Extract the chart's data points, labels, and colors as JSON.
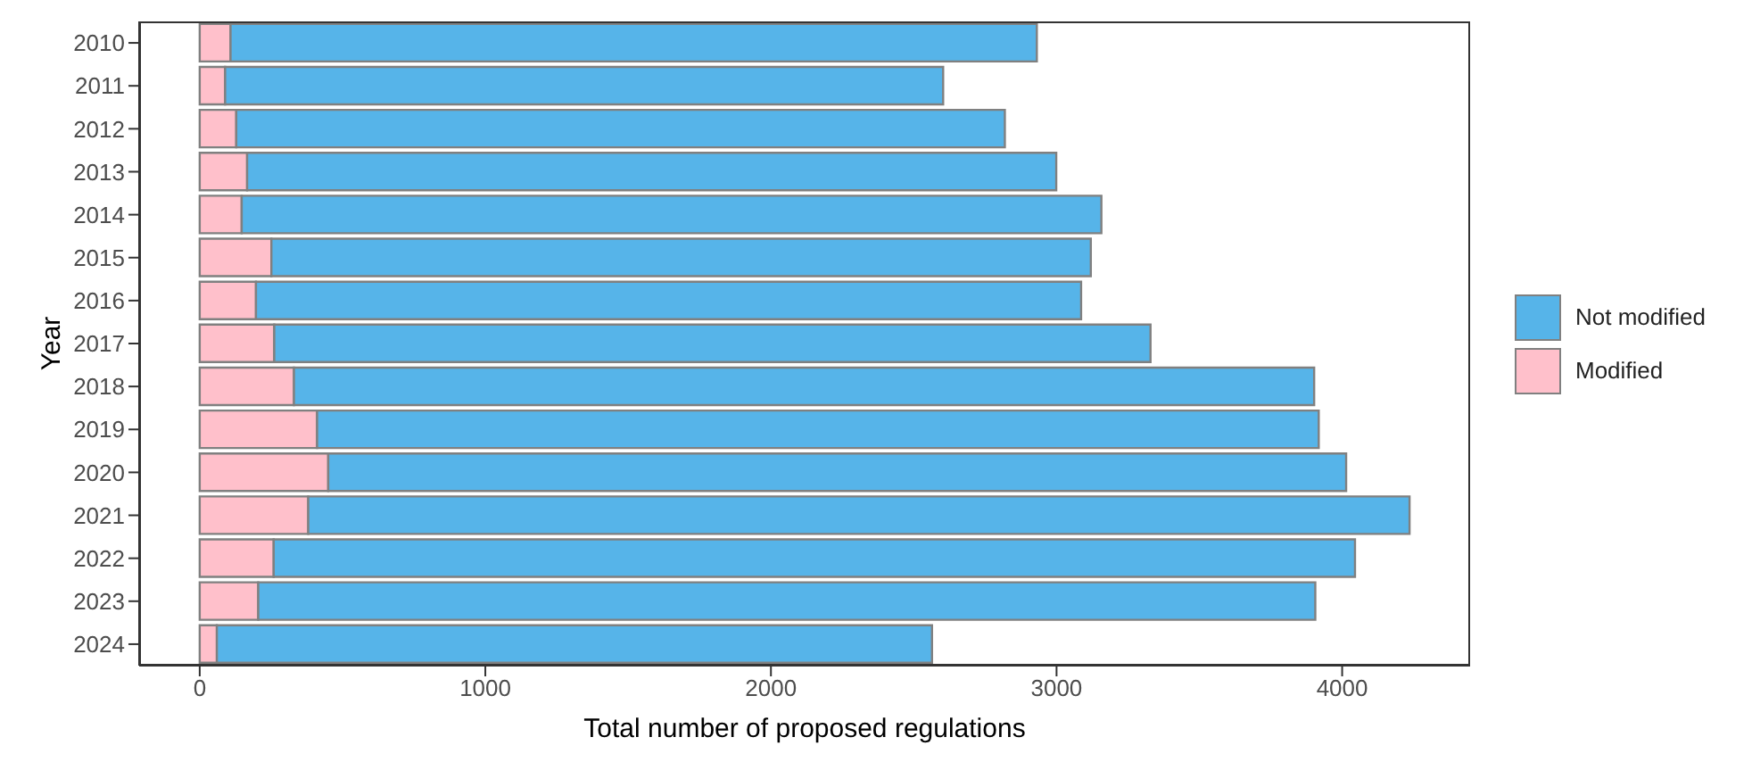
{
  "chart_data": {
    "type": "bar",
    "orientation": "horizontal",
    "stacked": true,
    "xlabel": "Total number of proposed regulations",
    "ylabel": "Year",
    "categories": [
      "2010",
      "2011",
      "2012",
      "2013",
      "2014",
      "2015",
      "2016",
      "2017",
      "2018",
      "2019",
      "2020",
      "2021",
      "2022",
      "2023",
      "2024"
    ],
    "series": [
      {
        "name": "Modified",
        "color": "#ffc0cb",
        "values": [
          108,
          89,
          128,
          166,
          147,
          251,
          197,
          261,
          330,
          411,
          450,
          380,
          259,
          205,
          60
        ]
      },
      {
        "name": "Not modified",
        "color": "#56b4e9",
        "values": [
          2823,
          2514,
          2691,
          2833,
          3010,
          2869,
          2889,
          3068,
          3572,
          3507,
          3564,
          3856,
          3786,
          3701,
          2504
        ]
      }
    ],
    "xlim": [
      -212,
      4448
    ],
    "xticks": [
      0,
      1000,
      2000,
      3000,
      4000
    ],
    "legend": "right"
  }
}
